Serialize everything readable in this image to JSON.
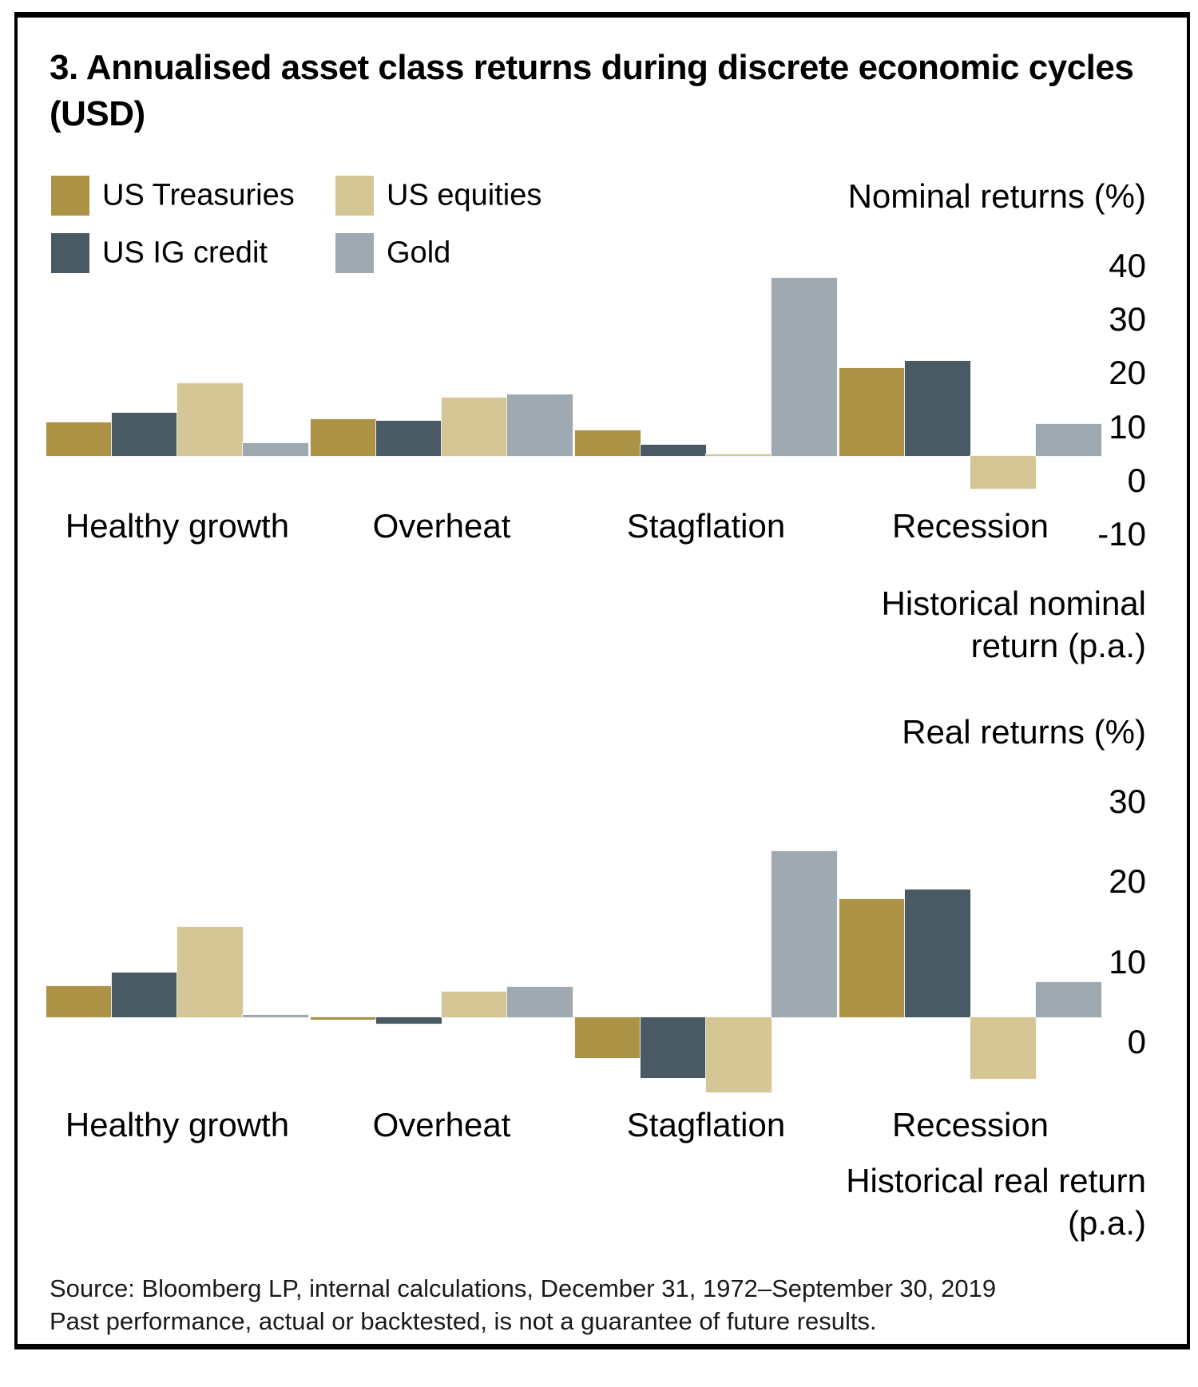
{
  "title": "3. Annualised asset class returns during discrete economic cycles (USD)",
  "legend": {
    "items": [
      {
        "label": "US Treasuries",
        "color": "#AC9245"
      },
      {
        "label": "US IG credit",
        "color": "#4A5A64"
      },
      {
        "label": "US equities",
        "color": "#D4C795"
      },
      {
        "label": "Gold",
        "color": "#9EA9B1"
      }
    ]
  },
  "chart_data": [
    {
      "type": "bar",
      "title": "Nominal returns (%)",
      "axis_note": "Historical nominal return (p.a.)",
      "categories": [
        "Healthy growth",
        "Overheat",
        "Stagflation",
        "Recession"
      ],
      "series": [
        {
          "name": "US Treasuries",
          "color": "#AC9245",
          "values": [
            6.3,
            6.8,
            4.7,
            16.3
          ]
        },
        {
          "name": "US IG credit",
          "color": "#4A5A64",
          "values": [
            8.0,
            6.6,
            2.1,
            17.7
          ]
        },
        {
          "name": "US equities",
          "color": "#D4C795",
          "values": [
            13.5,
            10.8,
            0.3,
            -6.1
          ]
        },
        {
          "name": "Gold",
          "color": "#9EA9B1",
          "values": [
            2.4,
            11.5,
            33.1,
            5.9
          ]
        }
      ],
      "yticks": [
        40,
        30,
        20,
        10,
        0,
        -10
      ],
      "ylim": [
        -10,
        42
      ],
      "grid": false,
      "legend_position": "top-left"
    },
    {
      "type": "bar",
      "title": "Real returns (%)",
      "axis_note": "Historical real return (p.a.)",
      "categories": [
        "Healthy growth",
        "Overheat",
        "Stagflation",
        "Recession"
      ],
      "series": [
        {
          "name": "US Treasuries",
          "color": "#AC9245",
          "values": [
            3.9,
            -0.3,
            -5.1,
            14.7
          ]
        },
        {
          "name": "US IG credit",
          "color": "#4A5A64",
          "values": [
            5.6,
            -0.8,
            -7.6,
            15.9
          ]
        },
        {
          "name": "US equities",
          "color": "#D4C795",
          "values": [
            11.2,
            3.2,
            -9.4,
            -7.7
          ]
        },
        {
          "name": "Gold",
          "color": "#9EA9B1",
          "values": [
            0.3,
            3.8,
            20.7,
            4.4
          ]
        }
      ],
      "yticks": [
        30,
        20,
        10,
        0
      ],
      "ylim": [
        -10,
        32
      ],
      "grid": false,
      "legend_position": "none"
    }
  ],
  "source_line1": "Source: Bloomberg LP, internal calculations, December 31, 1972–September 30, 2019",
  "source_line2": "Past performance, actual or backtested, is not a guarantee of future results."
}
